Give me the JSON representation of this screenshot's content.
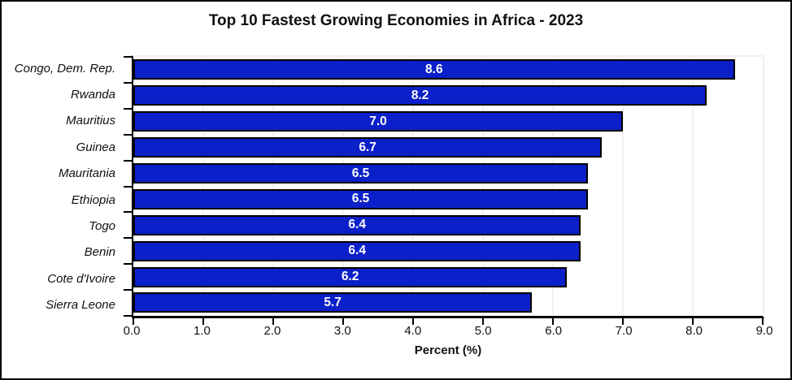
{
  "chart_data": {
    "type": "bar",
    "orientation": "horizontal",
    "title": "Top 10 Fastest Growing Economies in Africa - 2023",
    "categories": [
      "Congo, Dem. Rep.",
      "Rwanda",
      "Mauritius",
      "Guinea",
      "Mauritania",
      "Ethiopia",
      "Togo",
      "Benin",
      "Cote d'Ivoire",
      "Sierra Leone"
    ],
    "values": [
      8.6,
      8.2,
      7.0,
      6.7,
      6.5,
      6.5,
      6.4,
      6.4,
      6.2,
      5.7
    ],
    "data_labels": [
      "8.6",
      "8.2",
      "7.0",
      "6.7",
      "6.5",
      "6.5",
      "6.4",
      "6.4",
      "6.2",
      "5.7"
    ],
    "xlabel": "Percent (%)",
    "ylabel": "",
    "xlim": [
      0,
      9
    ],
    "xticks": [
      "0.0",
      "1.0",
      "2.0",
      "3.0",
      "4.0",
      "5.0",
      "6.0",
      "7.0",
      "8.0",
      "9.0"
    ],
    "grid": "vertical, light-gray, every 1.0",
    "legend": "none",
    "colors": {
      "bar_fill": "#0b20c8",
      "bar_border": "#000000",
      "data_label_text": "#ffffff",
      "axis_line": "#000000",
      "gridline": "#f1f1f1",
      "text": "#111111",
      "window_border": "#000000",
      "background": "#ffffff"
    }
  }
}
